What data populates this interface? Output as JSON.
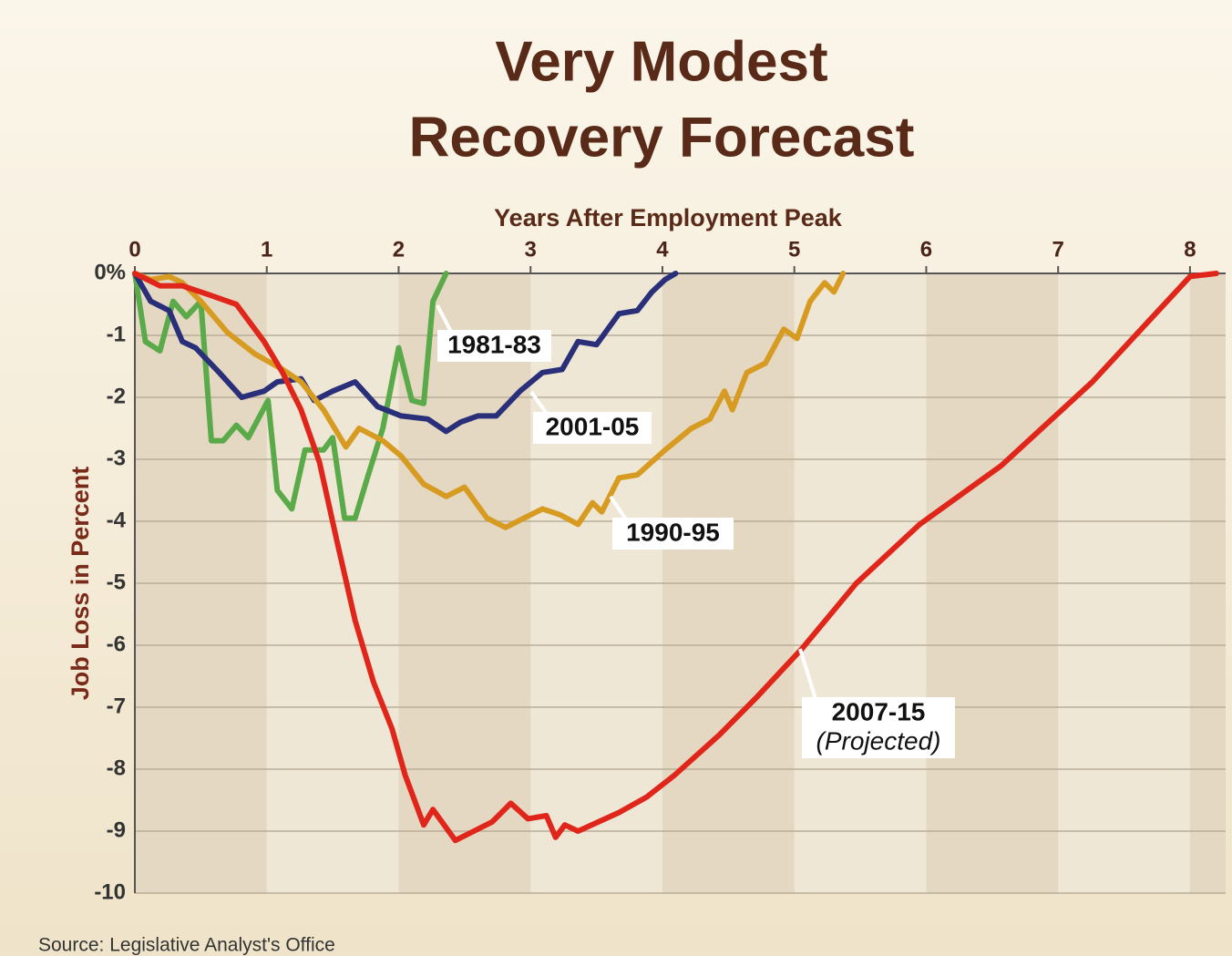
{
  "chart_data": {
    "type": "line",
    "title": [
      "Very Modest",
      "Recovery Forecast"
    ],
    "x_label": "Years After Employment Peak",
    "y_label": "Job Loss in Percent",
    "source": "Source: Legislative Analyst's Office",
    "annotation": "(Projected)",
    "xlim": [
      0,
      8.27
    ],
    "ylim": [
      -10,
      0
    ],
    "xticks": [
      0,
      1,
      2,
      3,
      4,
      5,
      6,
      7,
      8
    ],
    "yticks": [
      {
        "value": 0,
        "label": "0%"
      },
      -1,
      -2,
      -3,
      -4,
      -5,
      -6,
      -7,
      -8,
      -9,
      -10
    ],
    "grid": true,
    "series": [
      {
        "name": "1981-83",
        "color": "#5aaa4a",
        "x": [
          0,
          0.08,
          0.19,
          0.29,
          0.39,
          0.5,
          0.58,
          0.67,
          0.77,
          0.86,
          1.01,
          1.08,
          1.19,
          1.29,
          1.43,
          1.5,
          1.59,
          1.67,
          1.77,
          1.88,
          2.0,
          2.1,
          2.19,
          2.26,
          2.36
        ],
        "values": [
          0,
          -1.1,
          -1.25,
          -0.45,
          -0.7,
          -0.45,
          -2.7,
          -2.7,
          -2.45,
          -2.65,
          -2.05,
          -3.5,
          -3.8,
          -2.85,
          -2.85,
          -2.65,
          -3.95,
          -3.95,
          -3.25,
          -2.5,
          -1.2,
          -2.05,
          -2.1,
          -0.45,
          0
        ]
      },
      {
        "name": "2001-05",
        "color": "#2a2f7a",
        "x": [
          0,
          0.12,
          0.26,
          0.36,
          0.46,
          0.64,
          0.81,
          0.98,
          1.08,
          1.26,
          1.36,
          1.5,
          1.67,
          1.84,
          2.02,
          2.22,
          2.36,
          2.47,
          2.6,
          2.74,
          2.92,
          3.09,
          3.24,
          3.36,
          3.5,
          3.67,
          3.81,
          3.92,
          4.02,
          4.1
        ],
        "values": [
          0,
          -0.45,
          -0.6,
          -1.1,
          -1.2,
          -1.6,
          -2.0,
          -1.9,
          -1.75,
          -1.7,
          -2.05,
          -1.9,
          -1.75,
          -2.15,
          -2.3,
          -2.35,
          -2.55,
          -2.4,
          -2.3,
          -2.3,
          -1.9,
          -1.6,
          -1.55,
          -1.1,
          -1.15,
          -0.65,
          -0.6,
          -0.3,
          -0.1,
          0
        ]
      },
      {
        "name": "1990-95",
        "color": "#d79b22",
        "x": [
          0,
          0.12,
          0.26,
          0.36,
          0.5,
          0.7,
          0.91,
          1.12,
          1.26,
          1.43,
          1.6,
          1.7,
          1.88,
          2.02,
          2.19,
          2.36,
          2.5,
          2.67,
          2.81,
          2.95,
          3.09,
          3.23,
          3.36,
          3.47,
          3.54,
          3.67,
          3.81,
          4.02,
          4.22,
          4.36,
          4.47,
          4.53,
          4.64,
          4.78,
          4.92,
          5.02,
          5.12,
          5.23,
          5.3,
          5.37
        ],
        "values": [
          0,
          -0.1,
          -0.05,
          -0.15,
          -0.45,
          -0.95,
          -1.3,
          -1.55,
          -1.75,
          -2.2,
          -2.8,
          -2.5,
          -2.7,
          -2.95,
          -3.4,
          -3.6,
          -3.45,
          -3.95,
          -4.1,
          -3.95,
          -3.8,
          -3.9,
          -4.05,
          -3.7,
          -3.85,
          -3.3,
          -3.25,
          -2.85,
          -2.5,
          -2.35,
          -1.9,
          -2.2,
          -1.6,
          -1.45,
          -0.9,
          -1.05,
          -0.45,
          -0.15,
          -0.3,
          0
        ]
      },
      {
        "name": "2007-15",
        "color": "#e0251a",
        "x": [
          0,
          0.19,
          0.36,
          0.57,
          0.77,
          0.98,
          1.12,
          1.26,
          1.4,
          1.53,
          1.67,
          1.81,
          1.95,
          2.05,
          2.19,
          2.26,
          2.43,
          2.57,
          2.71,
          2.85,
          2.98,
          3.12,
          3.19,
          3.26,
          3.36,
          3.67,
          3.88,
          4.09,
          4.43,
          4.71,
          5.06,
          5.47,
          5.95,
          6.57,
          7.26,
          8.0,
          8.2
        ],
        "values": [
          0,
          -0.2,
          -0.2,
          -0.35,
          -0.5,
          -1.1,
          -1.6,
          -2.2,
          -3.05,
          -4.3,
          -5.6,
          -6.6,
          -7.35,
          -8.1,
          -8.9,
          -8.65,
          -9.15,
          -9.0,
          -8.85,
          -8.55,
          -8.8,
          -8.75,
          -9.1,
          -8.9,
          -9.0,
          -8.7,
          -8.45,
          -8.1,
          -7.45,
          -6.85,
          -6.05,
          -5.0,
          -4.05,
          -3.1,
          -1.75,
          -0.05,
          0
        ]
      }
    ]
  }
}
